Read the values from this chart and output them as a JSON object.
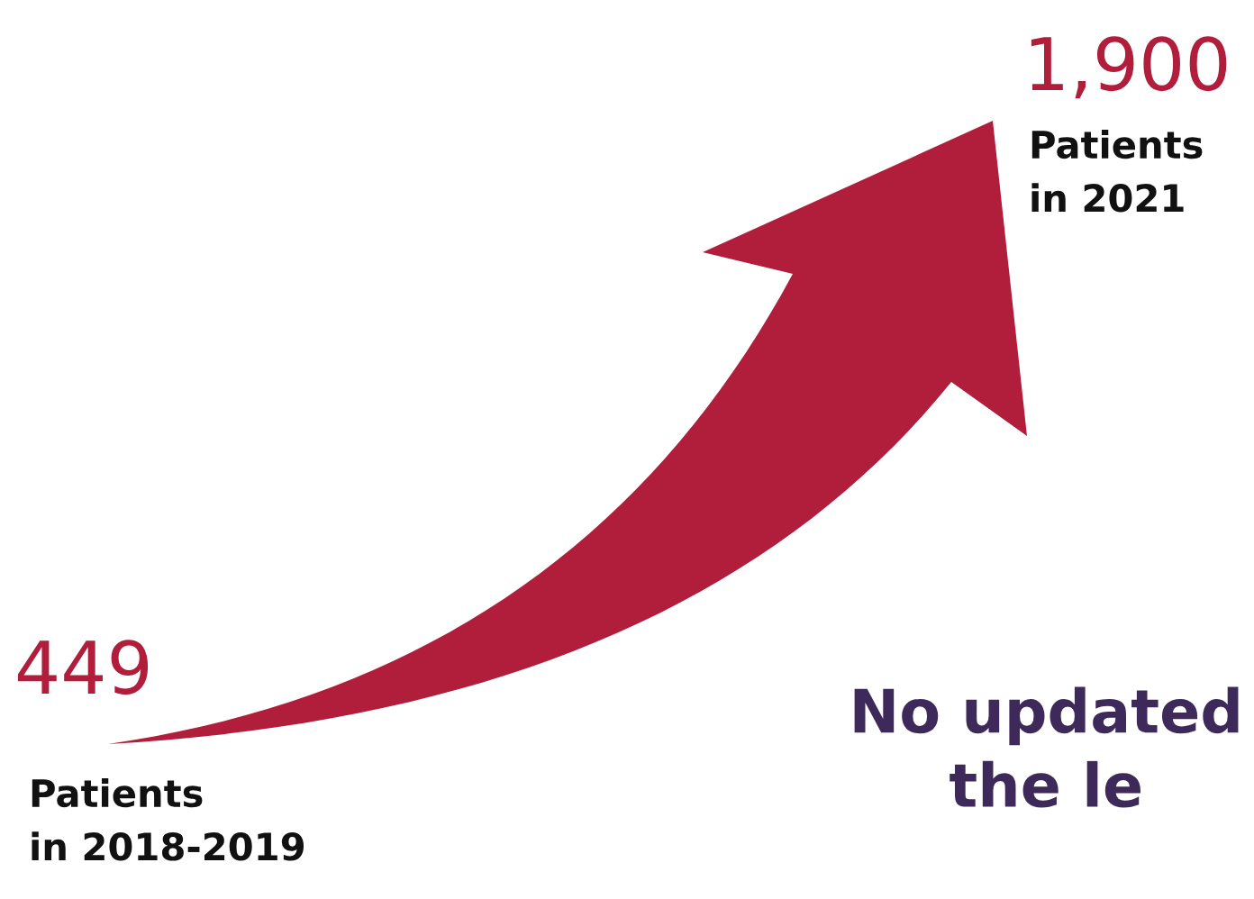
{
  "chart_data": {
    "type": "other",
    "categories": [
      "Patients\nin 2018-2019",
      "Patients\nin 2021"
    ],
    "values": [
      449,
      1900
    ],
    "value_labels": [
      "449",
      "1,900"
    ],
    "colors": [
      "#b01e3c",
      "#b01e3c"
    ],
    "annotations": [
      "No updated\nthe le"
    ]
  }
}
